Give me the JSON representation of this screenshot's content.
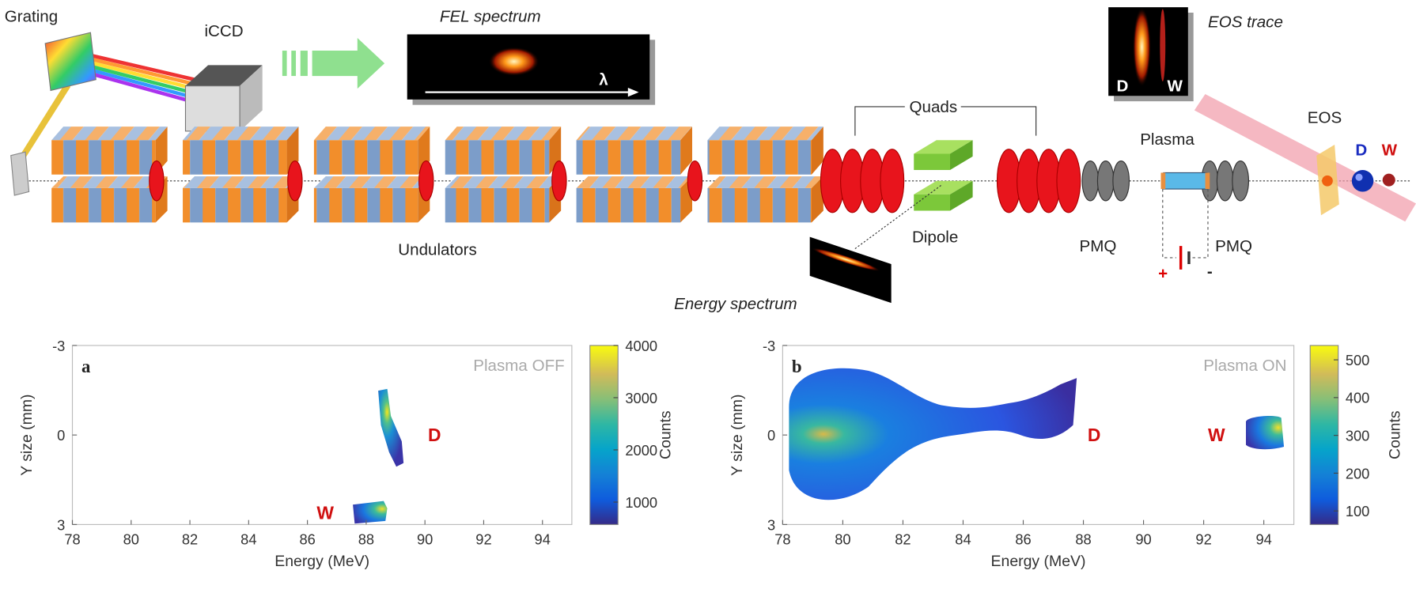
{
  "diagram": {
    "grating": "Grating",
    "iccd": "iCCD",
    "fel_spectrum": "FEL spectrum",
    "lambda": "λ",
    "eos_trace": "EOS trace",
    "trace_d": "D",
    "trace_w": "W",
    "quads": "Quads",
    "plasma": "Plasma",
    "eos": "EOS",
    "beam_d": "D",
    "beam_w": "W",
    "undulators": "Undulators",
    "dipole": "Dipole",
    "pmq_left": "PMQ",
    "pmq_right": "PMQ",
    "energy_spectrum": "Energy spectrum",
    "plus": "+",
    "minus": "-"
  },
  "panels": [
    {
      "label": "a",
      "annotation": "Plasma OFF",
      "xlabel": "Energy (MeV)",
      "ylabel": "Y size (mm)",
      "xlim": [
        78,
        95
      ],
      "xticks": [
        78,
        80,
        82,
        84,
        86,
        88,
        90,
        92,
        94
      ],
      "ylim": [
        -3,
        3
      ],
      "yticks": [
        -3,
        0,
        3
      ],
      "colorbar": {
        "label": "Counts",
        "lim": [
          570,
          4000
        ],
        "ticks": [
          1000,
          2000,
          3000,
          4000
        ]
      },
      "markers": [
        "D",
        "W"
      ]
    },
    {
      "label": "b",
      "annotation": "Plasma ON",
      "xlabel": "Energy (MeV)",
      "ylabel": "Y size (mm)",
      "xlim": [
        78,
        95
      ],
      "xticks": [
        78,
        80,
        82,
        84,
        86,
        88,
        90,
        92,
        94
      ],
      "ylim": [
        -3,
        3
      ],
      "yticks": [
        -3,
        0,
        3
      ],
      "colorbar": {
        "label": "Counts",
        "lim": [
          64,
          538
        ],
        "ticks": [
          100,
          200,
          300,
          400,
          500
        ]
      },
      "markers": [
        "D",
        "W"
      ]
    }
  ]
}
